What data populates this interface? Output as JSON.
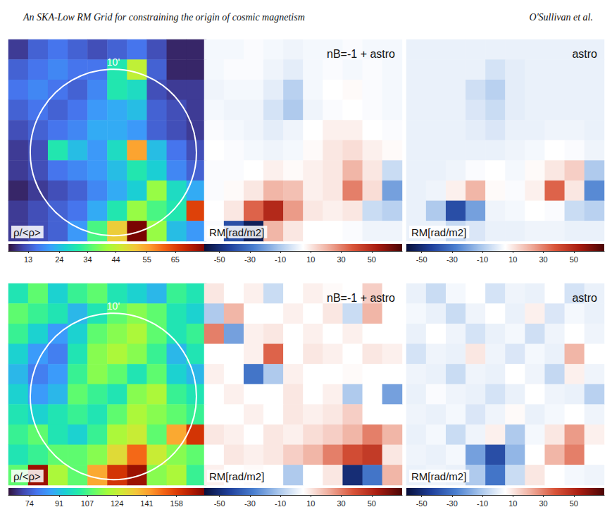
{
  "header": {
    "title": "An SKA-Low RM Grid for constraining the origin of cosmic magnetism",
    "authors": "O'Sullivan et al."
  },
  "chart_data": [
    {
      "type": "heatmap",
      "colorbar_label": "ρ/<ρ>",
      "circle_label": "10'",
      "colorbar_range": [
        6,
        76
      ],
      "colorbar_ticks": [
        13,
        24,
        34,
        44,
        55,
        65
      ],
      "cells": [
        [
          10,
          14,
          16,
          14,
          12,
          14,
          16,
          12,
          8,
          8
        ],
        [
          14,
          16,
          18,
          16,
          16,
          30,
          44,
          14,
          8,
          8
        ],
        [
          16,
          18,
          16,
          14,
          18,
          30,
          28,
          12,
          10,
          10
        ],
        [
          14,
          16,
          14,
          16,
          20,
          22,
          24,
          14,
          12,
          10
        ],
        [
          12,
          14,
          16,
          18,
          22,
          22,
          20,
          14,
          12,
          10
        ],
        [
          10,
          12,
          30,
          24,
          20,
          28,
          55,
          24,
          16,
          12
        ],
        [
          10,
          12,
          16,
          18,
          20,
          24,
          30,
          26,
          18,
          14
        ],
        [
          8,
          10,
          12,
          14,
          18,
          22,
          26,
          40,
          28,
          22
        ],
        [
          10,
          12,
          14,
          16,
          22,
          30,
          40,
          34,
          30,
          65
        ],
        [
          10,
          12,
          14,
          20,
          34,
          50,
          76,
          40,
          24,
          20
        ]
      ]
    },
    {
      "type": "heatmap",
      "title": "nB=-1 + astro",
      "colorbar_label": "RM[rad/m2]",
      "colorbar_range": [
        -60,
        70
      ],
      "colorbar_ticks": [
        -50,
        -30,
        -10,
        10,
        30,
        50
      ],
      "cells": [
        [
          3,
          3,
          4,
          3,
          2,
          3,
          3,
          4,
          3,
          3
        ],
        [
          3,
          4,
          4,
          2,
          0,
          3,
          4,
          3,
          4,
          3
        ],
        [
          2,
          3,
          3,
          0,
          -8,
          3,
          5,
          6,
          4,
          3
        ],
        [
          3,
          2,
          2,
          -3,
          -10,
          2,
          4,
          5,
          4,
          3
        ],
        [
          4,
          3,
          2,
          0,
          2,
          5,
          8,
          8,
          5,
          4
        ],
        [
          5,
          4,
          3,
          2,
          3,
          6,
          10,
          12,
          8,
          6
        ],
        [
          4,
          4,
          5,
          8,
          6,
          8,
          10,
          20,
          10,
          -5
        ],
        [
          4,
          6,
          10,
          20,
          18,
          8,
          10,
          30,
          12,
          -20
        ],
        [
          5,
          10,
          35,
          50,
          25,
          10,
          8,
          10,
          -5,
          -8
        ],
        [
          4,
          -40,
          -55,
          20,
          10,
          5,
          5,
          4,
          2,
          2
        ]
      ]
    },
    {
      "type": "heatmap",
      "title": "astro",
      "colorbar_label": "RM[rad/m2]",
      "colorbar_range": [
        -60,
        70
      ],
      "colorbar_ticks": [
        -50,
        -30,
        -10,
        10,
        30,
        50
      ],
      "cells": [
        [
          1,
          1,
          1,
          1,
          1,
          1,
          1,
          1,
          1,
          1
        ],
        [
          1,
          1,
          1,
          1,
          -3,
          0,
          1,
          1,
          1,
          1
        ],
        [
          1,
          1,
          1,
          -4,
          -8,
          0,
          1,
          1,
          1,
          1
        ],
        [
          1,
          1,
          1,
          -2,
          -5,
          0,
          1,
          1,
          1,
          1
        ],
        [
          1,
          1,
          1,
          0,
          -2,
          1,
          1,
          2,
          2,
          1
        ],
        [
          1,
          1,
          1,
          1,
          1,
          2,
          3,
          5,
          4,
          2
        ],
        [
          1,
          1,
          2,
          4,
          5,
          3,
          6,
          10,
          15,
          -10
        ],
        [
          1,
          2,
          8,
          20,
          6,
          4,
          8,
          35,
          10,
          -25
        ],
        [
          1,
          -10,
          -40,
          -20,
          2,
          3,
          5,
          4,
          -5,
          -8
        ],
        [
          1,
          1,
          -6,
          -2,
          1,
          1,
          2,
          2,
          1,
          1
        ]
      ]
    },
    {
      "type": "heatmap",
      "colorbar_label": "ρ/<ρ>",
      "circle_label": "10'",
      "colorbar_range": [
        62,
        175
      ],
      "colorbar_ticks": [
        74,
        91,
        107,
        124,
        141,
        158
      ],
      "cells": [
        [
          100,
          110,
          95,
          105,
          110,
          100,
          95,
          90,
          105,
          100
        ],
        [
          110,
          105,
          100,
          90,
          100,
          110,
          115,
          110,
          100,
          95
        ],
        [
          105,
          95,
          85,
          95,
          110,
          115,
          120,
          110,
          100,
          105
        ],
        [
          95,
          85,
          80,
          100,
          115,
          120,
          115,
          105,
          90,
          100
        ],
        [
          90,
          80,
          85,
          105,
          115,
          110,
          100,
          110,
          95,
          90
        ],
        [
          95,
          85,
          90,
          110,
          105,
          100,
          115,
          120,
          105,
          100
        ],
        [
          100,
          95,
          100,
          105,
          100,
          110,
          120,
          115,
          110,
          105
        ],
        [
          105,
          110,
          100,
          95,
          105,
          120,
          125,
          110,
          140,
          160
        ],
        [
          100,
          105,
          110,
          110,
          115,
          130,
          150,
          125,
          115,
          110
        ],
        [
          110,
          170,
          120,
          110,
          140,
          160,
          170,
          115,
          120,
          105
        ]
      ]
    },
    {
      "type": "heatmap",
      "title": "nB=-1 + astro",
      "colorbar_label": "RM[rad/m2]",
      "colorbar_range": [
        -60,
        70
      ],
      "colorbar_ticks": [
        -50,
        -30,
        -10,
        10,
        30,
        50
      ],
      "cells": [
        [
          10,
          5,
          8,
          -5,
          5,
          8,
          6,
          5,
          15,
          5
        ],
        [
          -10,
          20,
          5,
          5,
          8,
          5,
          10,
          -5,
          20,
          5
        ],
        [
          30,
          -20,
          8,
          10,
          5,
          8,
          5,
          8,
          5,
          5
        ],
        [
          5,
          5,
          8,
          35,
          5,
          10,
          8,
          5,
          10,
          8
        ],
        [
          8,
          5,
          -30,
          -10,
          8,
          5,
          5,
          6,
          5,
          5
        ],
        [
          5,
          8,
          5,
          5,
          10,
          5,
          8,
          -10,
          5,
          -20
        ],
        [
          5,
          5,
          8,
          5,
          10,
          8,
          10,
          15,
          5,
          5
        ],
        [
          10,
          8,
          5,
          10,
          8,
          12,
          15,
          20,
          30,
          20
        ],
        [
          5,
          10,
          8,
          10,
          15,
          20,
          30,
          40,
          45,
          10
        ],
        [
          8,
          5,
          6,
          5,
          -10,
          5,
          10,
          -50,
          -30,
          20
        ]
      ]
    },
    {
      "type": "heatmap",
      "title": "astro",
      "colorbar_label": "RM[rad/m2]",
      "colorbar_range": [
        -60,
        70
      ],
      "colorbar_ticks": [
        -50,
        -30,
        -10,
        10,
        30,
        50
      ],
      "cells": [
        [
          1,
          -5,
          3,
          5,
          -3,
          2,
          1,
          5,
          -3,
          1
        ],
        [
          3,
          1,
          -5,
          2,
          5,
          1,
          8,
          -2,
          3,
          1
        ],
        [
          1,
          5,
          2,
          -3,
          1,
          3,
          -4,
          2,
          5,
          2
        ],
        [
          -3,
          2,
          1,
          10,
          2,
          -2,
          3,
          1,
          20,
          5
        ],
        [
          2,
          1,
          -5,
          2,
          1,
          5,
          2,
          -6,
          8,
          2
        ],
        [
          1,
          4,
          2,
          1,
          -3,
          1,
          5,
          2,
          1,
          -8
        ],
        [
          2,
          1,
          3,
          -2,
          2,
          6,
          1,
          3,
          5,
          2
        ],
        [
          1,
          3,
          -5,
          2,
          8,
          -10,
          3,
          10,
          25,
          8
        ],
        [
          2,
          1,
          3,
          -20,
          -40,
          -15,
          5,
          20,
          30,
          5
        ],
        [
          1,
          2,
          1,
          -10,
          -30,
          -5,
          10,
          5,
          3,
          2
        ]
      ]
    }
  ]
}
